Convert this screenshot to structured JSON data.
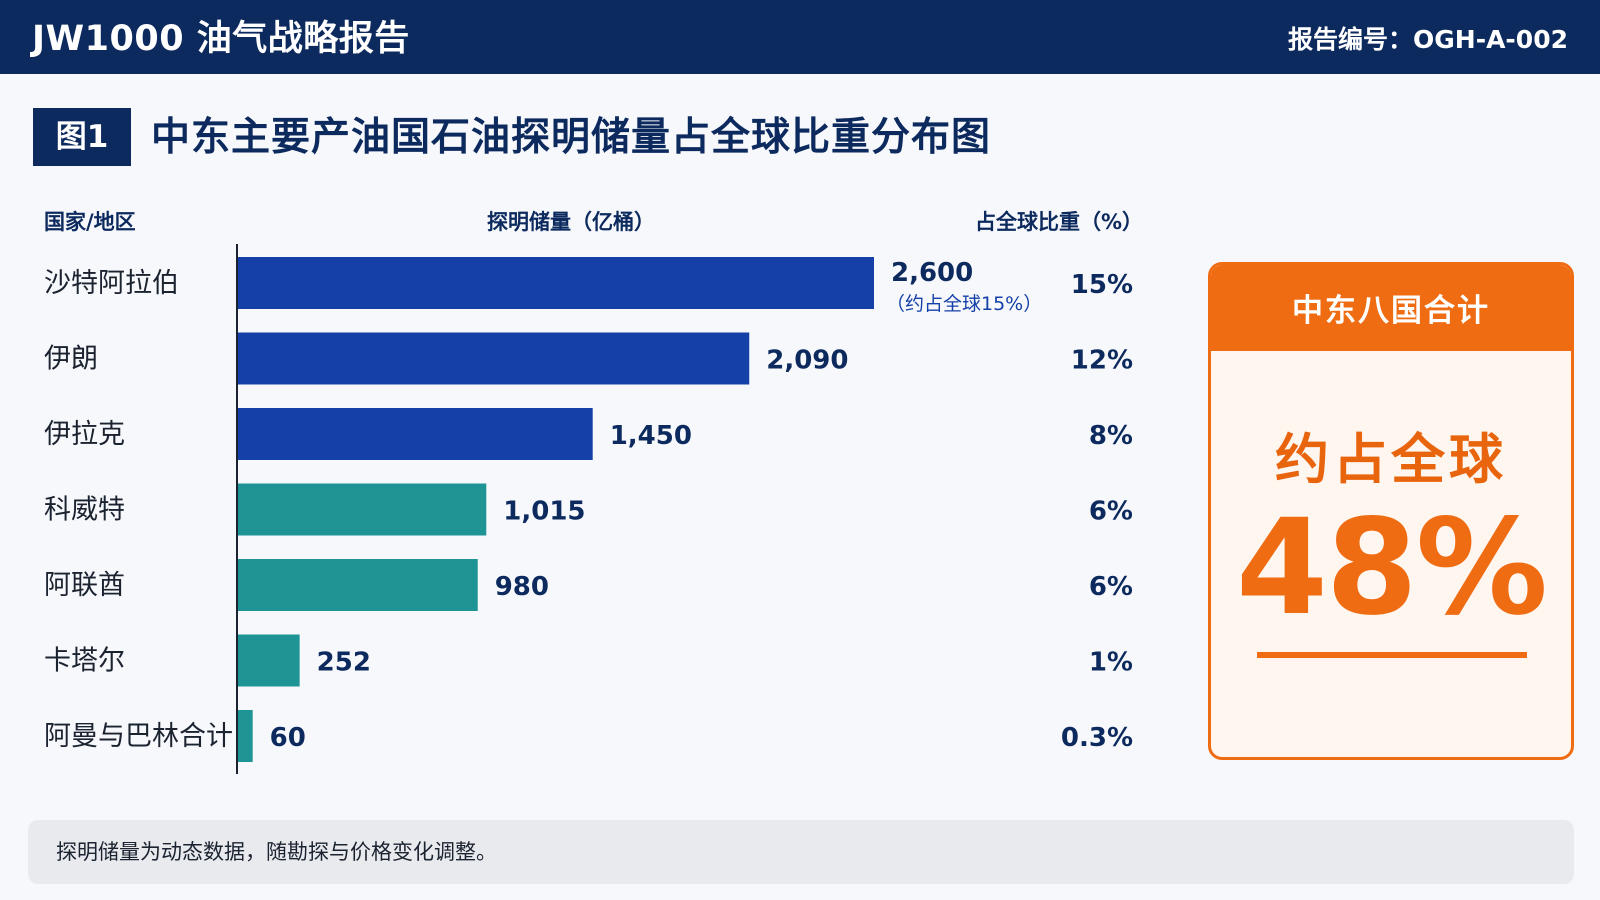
{
  "header": {
    "title": "JW1000 油气战略报告",
    "report_no": "报告编号：OGH-A-002"
  },
  "figure": {
    "badge": "图1",
    "title": "中东主要产油国石油探明储量占全球比重分布图"
  },
  "columns": {
    "country": "国家/地区",
    "reserves": "探明储量（亿桶）",
    "share": "占全球比重（%）"
  },
  "colors": {
    "navy": "#0c2a5e",
    "blue_bar": "#1440a8",
    "teal_bar": "#1f9494",
    "orange": "#ef6c13"
  },
  "chart_data": {
    "type": "bar",
    "orientation": "horizontal",
    "categories": [
      "沙特阿拉伯",
      "伊朗",
      "伊拉克",
      "科威特",
      "阿联酋",
      "卡塔尔",
      "阿曼与巴林合计"
    ],
    "values": [
      2600,
      2090,
      1450,
      1015,
      980,
      252,
      60
    ],
    "value_labels": [
      "2,600",
      "2,090",
      "1,450",
      "1,015",
      "980",
      "252",
      "60"
    ],
    "share_labels": [
      "15%",
      "12%",
      "8%",
      "6%",
      "6%",
      "1%",
      "0.3%"
    ],
    "bar_colors": [
      "#1440a8",
      "#1440a8",
      "#1440a8",
      "#1f9494",
      "#1f9494",
      "#1f9494",
      "#1f9494"
    ],
    "annotation": "（约占全球15%）",
    "annotation_index": 0,
    "xlim": [
      0,
      2600
    ],
    "xlabel": "探明储量（亿桶）",
    "grid": false
  },
  "total_card": {
    "title": "中东八国合计",
    "subtitle": "约占全球",
    "value": "48%"
  },
  "note": "探明储量为动态数据，随勘探与价格变化调整。"
}
